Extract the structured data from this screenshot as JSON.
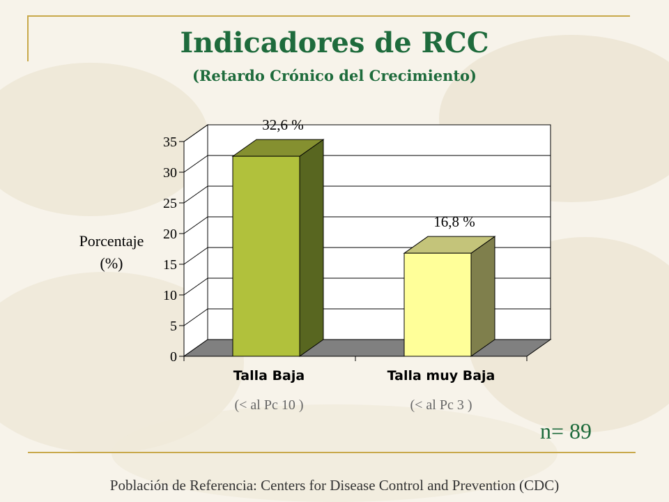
{
  "slide": {
    "title": "Indicadores de RCC",
    "subtitle": "(Retardo Crónico del Crecimiento)",
    "n_label": "n= 89",
    "footer": "Población de Referencia:  Centers for Disease Control and Prevention (CDC)"
  },
  "chart_data": {
    "type": "bar",
    "categories": [
      "Talla Baja",
      "Talla muy Baja"
    ],
    "category_notes": [
      "(< al Pc 10 )",
      "(< al Pc 3 )"
    ],
    "values": [
      32.6,
      16.8
    ],
    "data_labels": [
      "32,6 %",
      "16,8 %"
    ],
    "ylabel_lines": [
      "Porcentaje",
      "(%)"
    ],
    "ylim": [
      0,
      35
    ],
    "yticks": [
      0,
      5,
      10,
      15,
      20,
      25,
      30,
      35
    ],
    "grid": true,
    "colors": {
      "bar1_front": "#b1c13c",
      "bar1_side": "#586620",
      "bar1_top": "#859030",
      "bar2_front": "#ffff99",
      "bar2_side": "#7f7f4c",
      "bar2_top": "#c4c47a",
      "floor": "#808080",
      "grid": "#000000"
    }
  }
}
